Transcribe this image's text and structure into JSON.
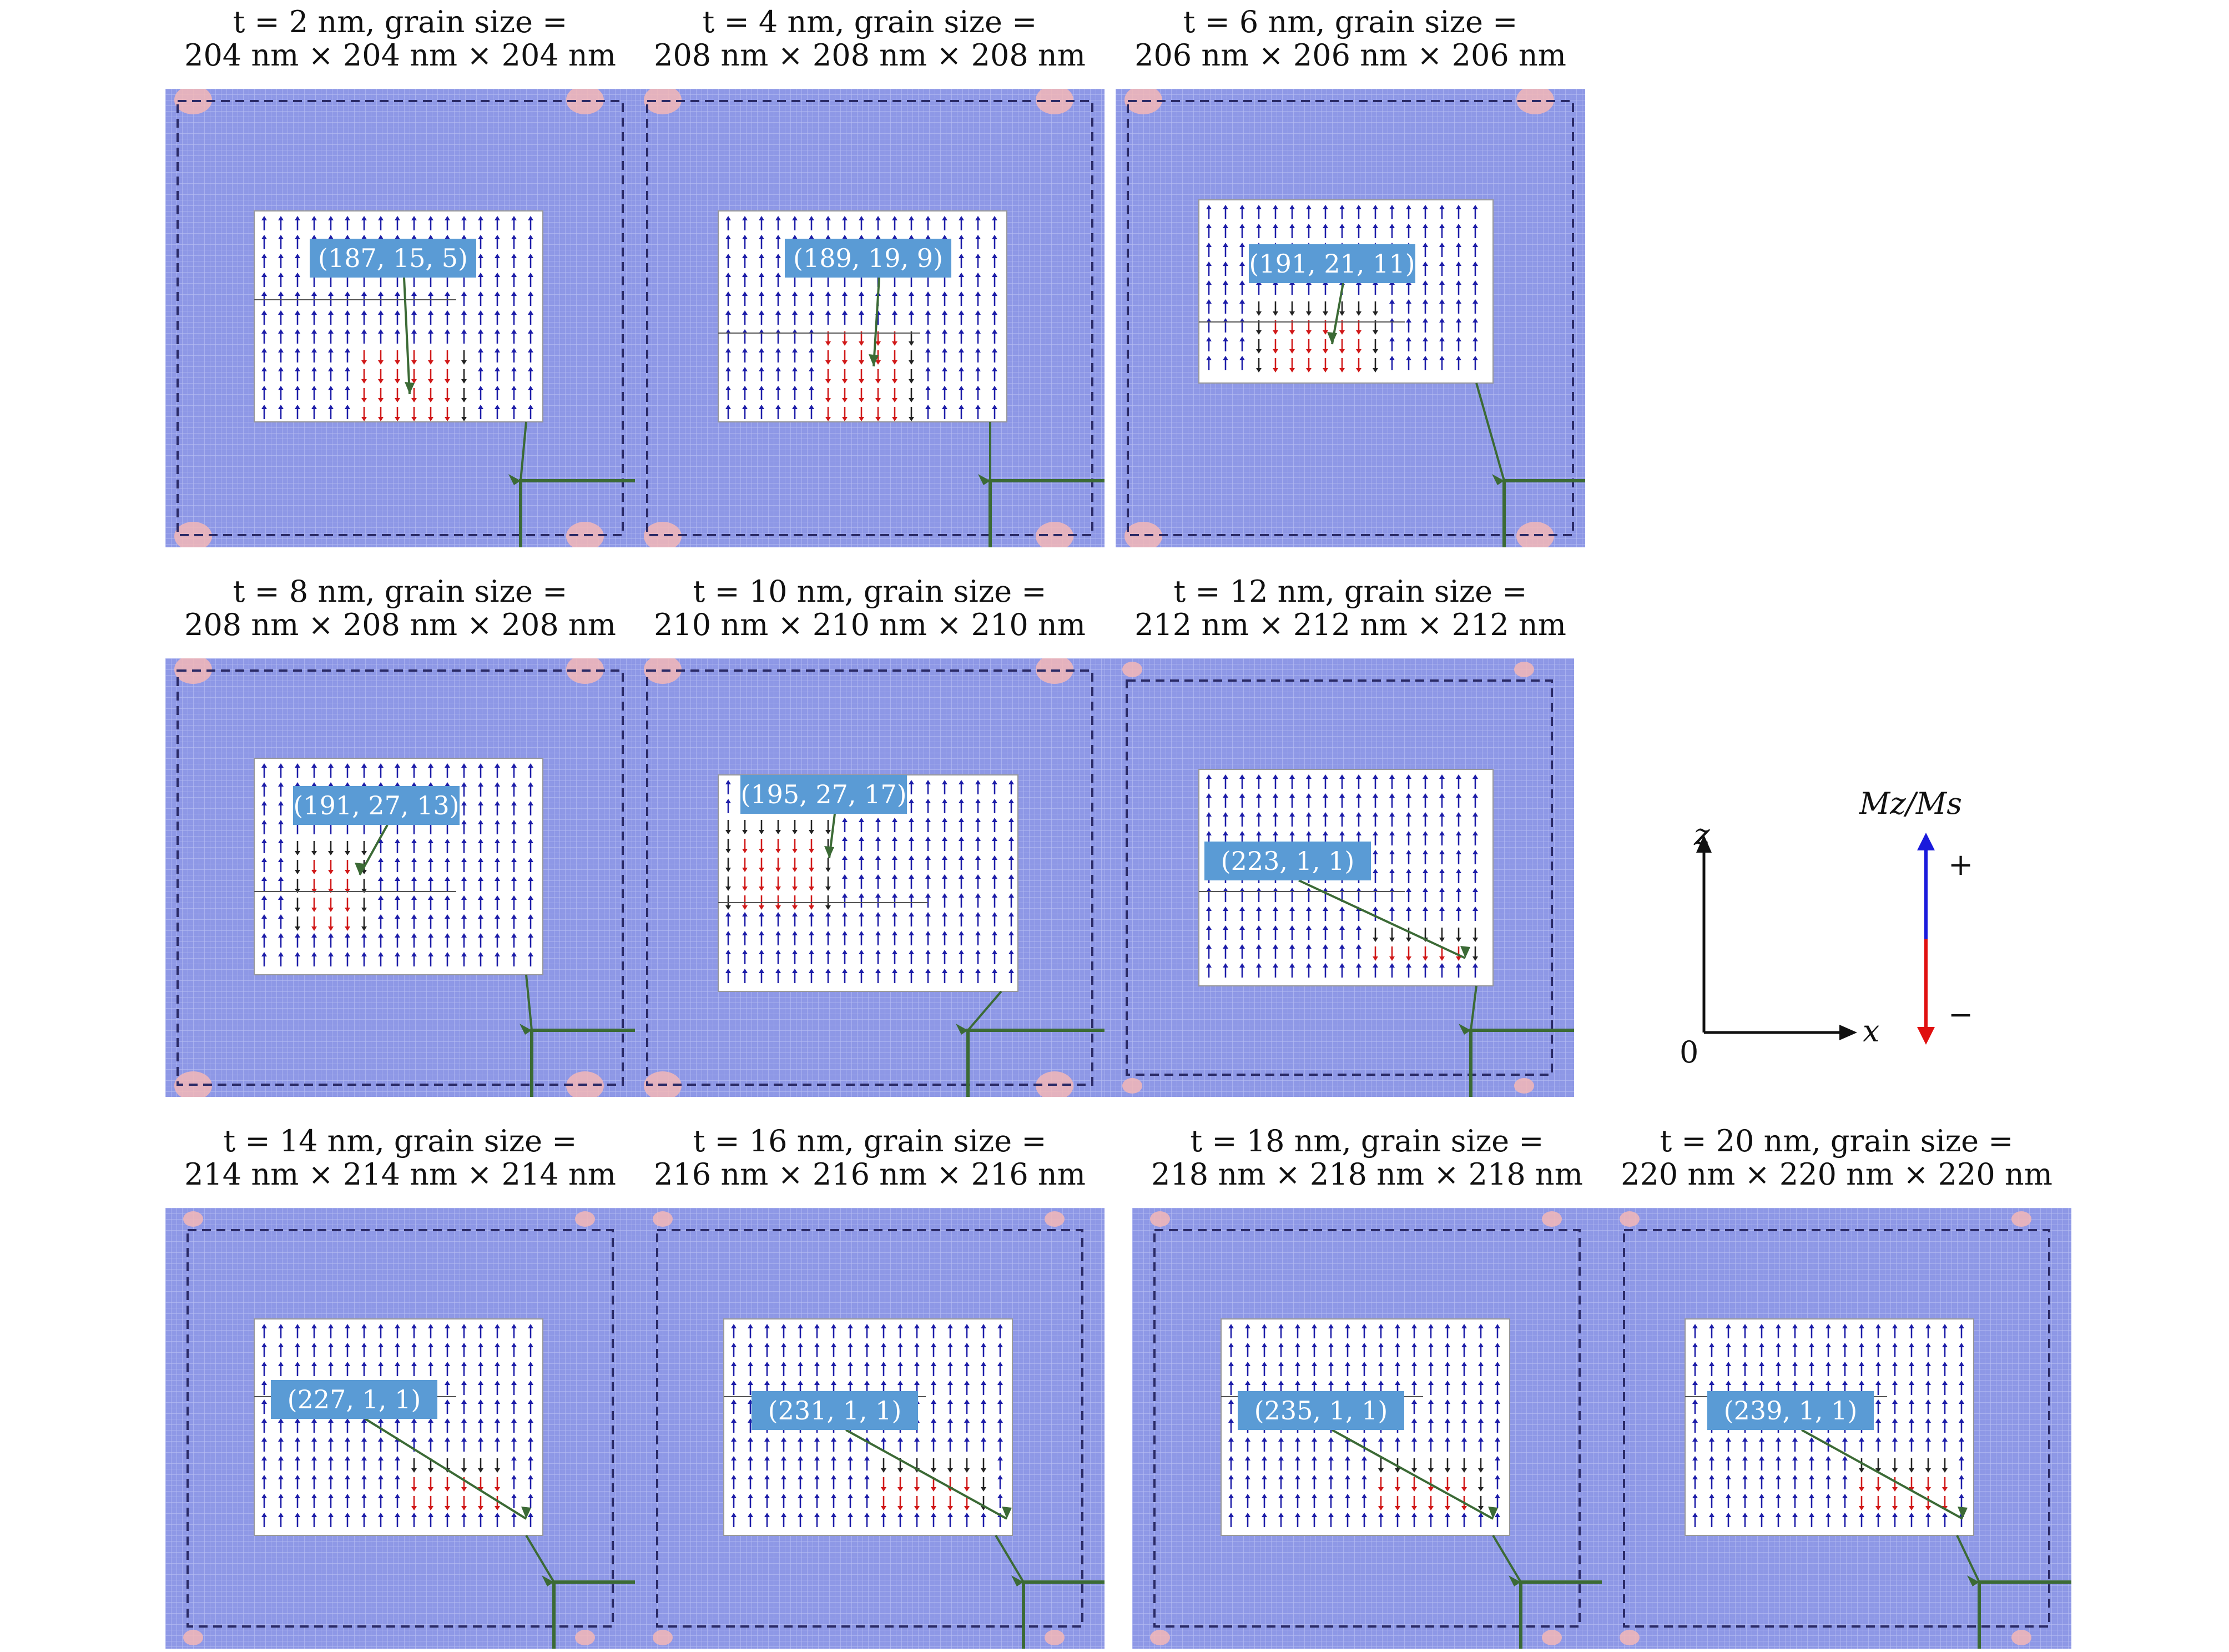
{
  "panels": [
    {
      "id": "p1",
      "caption_line1": "t = 2 nm, grain size =",
      "caption_line2": "204 nm × 204 nm × 204 nm",
      "label": "(187, 15, 5)",
      "state": "A",
      "variant": 0
    },
    {
      "id": "p2",
      "caption_line1": "t = 4 nm, grain size =",
      "caption_line2": "208 nm × 208 nm × 208 nm",
      "label": "(189, 19, 9)",
      "state": "A",
      "variant": 1
    },
    {
      "id": "p3",
      "caption_line1": "t = 6 nm, grain size =",
      "caption_line2": "206 nm × 206 nm × 206 nm",
      "label": "(191, 21, 11)",
      "state": "A",
      "variant": 2
    },
    {
      "id": "p4",
      "caption_line1": "t = 8 nm, grain size =",
      "caption_line2": "208 nm × 208 nm × 208 nm",
      "label": "(191, 27, 13)",
      "state": "A",
      "variant": 3
    },
    {
      "id": "p5",
      "caption_line1": "t = 10 nm, grain size =",
      "caption_line2": "210 nm × 210 nm × 210 nm",
      "label": "(195, 27, 17)",
      "state": "A",
      "variant": 4
    },
    {
      "id": "p6",
      "caption_line1": "t = 12 nm, grain size =",
      "caption_line2": "212 nm × 212 nm × 212 nm",
      "label": "(223, 1, 1)",
      "state": "B",
      "variant": 5
    },
    {
      "id": "p7",
      "caption_line1": "t = 14 nm, grain size =",
      "caption_line2": "214 nm × 214 nm × 214 nm",
      "label": "(227, 1, 1)",
      "state": "B",
      "variant": 6
    },
    {
      "id": "p8",
      "caption_line1": "t = 16 nm, grain size =",
      "caption_line2": "216 nm × 216 nm × 216 nm",
      "label": "(231, 1, 1)",
      "state": "B",
      "variant": 7
    },
    {
      "id": "p9",
      "caption_line1": "t = 18 nm, grain size =",
      "caption_line2": "218 nm × 218 nm × 218 nm",
      "label": "(235, 1, 1)",
      "state": "B",
      "variant": 8
    },
    {
      "id": "p10",
      "caption_line1": "t = 20 nm, grain size =",
      "caption_line2": "220 nm × 220 nm × 220 nm",
      "label": "(239, 1, 1)",
      "state": "B",
      "variant": 9
    }
  ],
  "axes": {
    "z_label": "z",
    "x_label": "x",
    "origin_label": "0"
  },
  "colorbar": {
    "title": "Mz/Ms",
    "plus": "+",
    "minus": "−",
    "top_color": "#1a1adc",
    "bottom_color": "#e01010"
  },
  "colors": {
    "field": "#8e98e6",
    "label_box": "#5a9bd5",
    "arrow_up": "#1c1ca8",
    "arrow_down": "#d01818",
    "pointer": "#3b6a35"
  }
}
